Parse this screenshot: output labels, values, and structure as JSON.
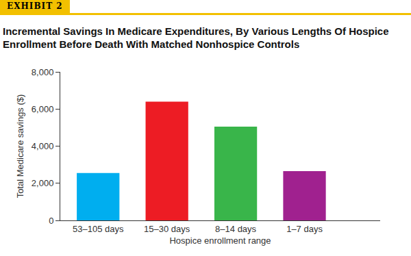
{
  "chart_data": {
    "type": "bar",
    "title": "Incremental Savings In Medicare Expenditures, By Various Lengths Of Hospice Enrollment Before Death With Matched Nonhospice Controls",
    "annotations": [
      "EXHIBIT 2"
    ],
    "x_label": "Hospice enrollment range",
    "y_label": "Total Medicare savings ($)",
    "categories": [
      "53–105 days",
      "15–30 days",
      "8–14 days",
      "1–7 days"
    ],
    "values": [
      2550,
      6400,
      5050,
      2650
    ],
    "colors": [
      "#00aeef",
      "#ed1c24",
      "#39b54a",
      "#a0218f"
    ],
    "ylim": [
      0,
      8000
    ],
    "yticks": [
      0,
      {
        "value": 2000,
        "label": "2,000"
      },
      {
        "value": 4000,
        "label": "4,000"
      },
      {
        "value": 6000,
        "label": "6,000"
      },
      {
        "value": 8000,
        "label": "8,000"
      }
    ],
    "grid": false
  }
}
